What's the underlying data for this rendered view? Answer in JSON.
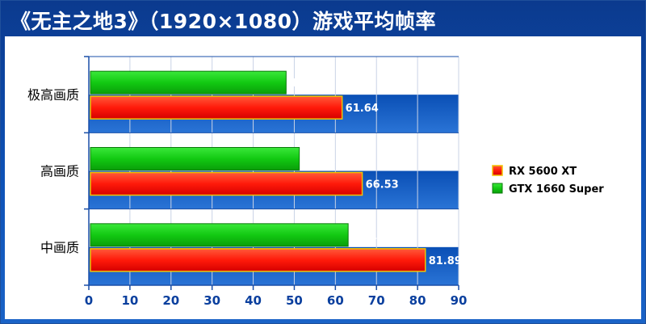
{
  "title": "《无主之地3》（1920×1080）游戏平均帧率",
  "chart_data": {
    "type": "bar",
    "orientation": "horizontal",
    "title": "《无主之地3》（1920×1080）游戏平均帧率",
    "xlabel": "",
    "ylabel": "",
    "categories": [
      "极高画质",
      "高画质",
      "中画质"
    ],
    "series": [
      {
        "name": "RX 5600 XT",
        "values": [
          61.64,
          66.53,
          81.89
        ],
        "color": "#ff2a1a"
      },
      {
        "name": "GTX 1660 Super",
        "values": [
          48.01,
          51.22,
          63.11
        ],
        "color": "#1fd41f"
      }
    ],
    "xlim": [
      0,
      90
    ],
    "xticks": [
      0,
      10,
      20,
      30,
      40,
      50,
      60,
      70,
      80,
      90
    ],
    "grid": true,
    "legend": "right"
  }
}
